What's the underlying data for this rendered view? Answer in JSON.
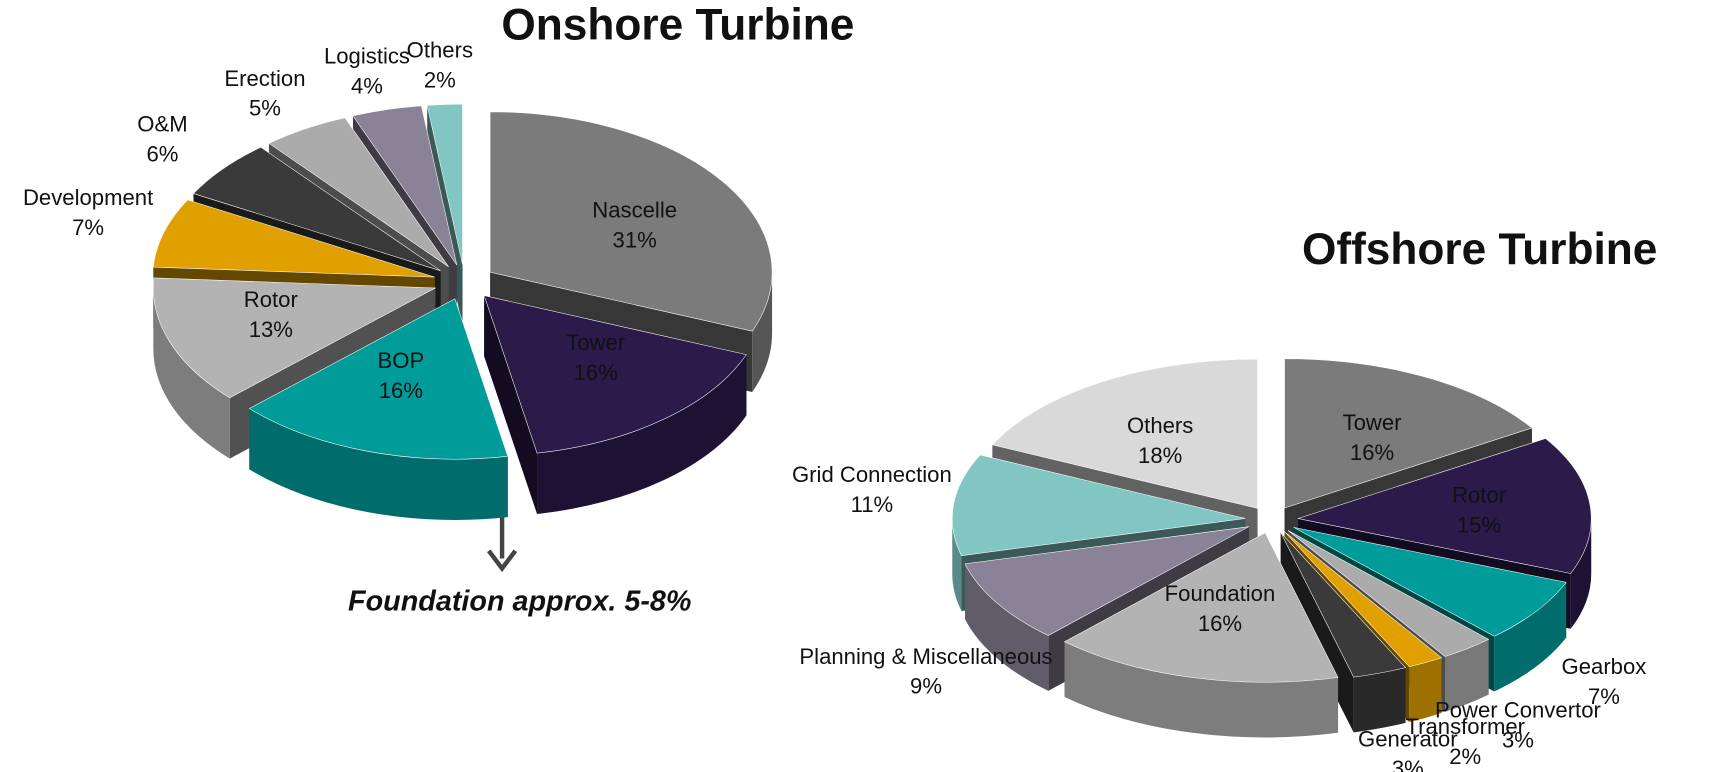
{
  "chart_data": [
    {
      "type": "pie",
      "title": "Onshore Turbine",
      "annotation": "Foundation approx. 5-8%",
      "categories": [
        "Nascelle",
        "Tower",
        "BOP",
        "Rotor",
        "Development",
        "O&M",
        "Erection",
        "Logistics",
        "Others"
      ],
      "values": [
        31,
        16,
        16,
        13,
        7,
        6,
        5,
        4,
        2
      ],
      "value_labels": [
        "31%",
        "16%",
        "16%",
        "13%",
        "7%",
        "6%",
        "5%",
        "4%",
        "2%"
      ],
      "colors": [
        "#7b7b7b",
        "#2b1a4a",
        "#009c9a",
        "#b3b3b3",
        "#e0a000",
        "#3a3a3a",
        "#ababab",
        "#8a8398",
        "#82c6c4"
      ]
    },
    {
      "type": "pie",
      "title": "Offshore Turbine",
      "categories": [
        "Tower",
        "Rotor",
        "Gearbox",
        "Power Convertor",
        "Transformer",
        "Generator",
        "Foundation",
        "Planning & Miscellaneous",
        "Grid Connection",
        "Others"
      ],
      "values": [
        16,
        15,
        7,
        3,
        2,
        3,
        16,
        9,
        11,
        18
      ],
      "value_labels": [
        "16%",
        "15%",
        "7%",
        "3%",
        "2%",
        "3%",
        "16%",
        "9%",
        "11%",
        "18%"
      ],
      "colors": [
        "#7b7b7b",
        "#2b1a4a",
        "#009c9a",
        "#ababab",
        "#e0a000",
        "#3a3a3a",
        "#b3b3b3",
        "#8a8398",
        "#82c6c4",
        "#d9d9d9"
      ]
    }
  ]
}
